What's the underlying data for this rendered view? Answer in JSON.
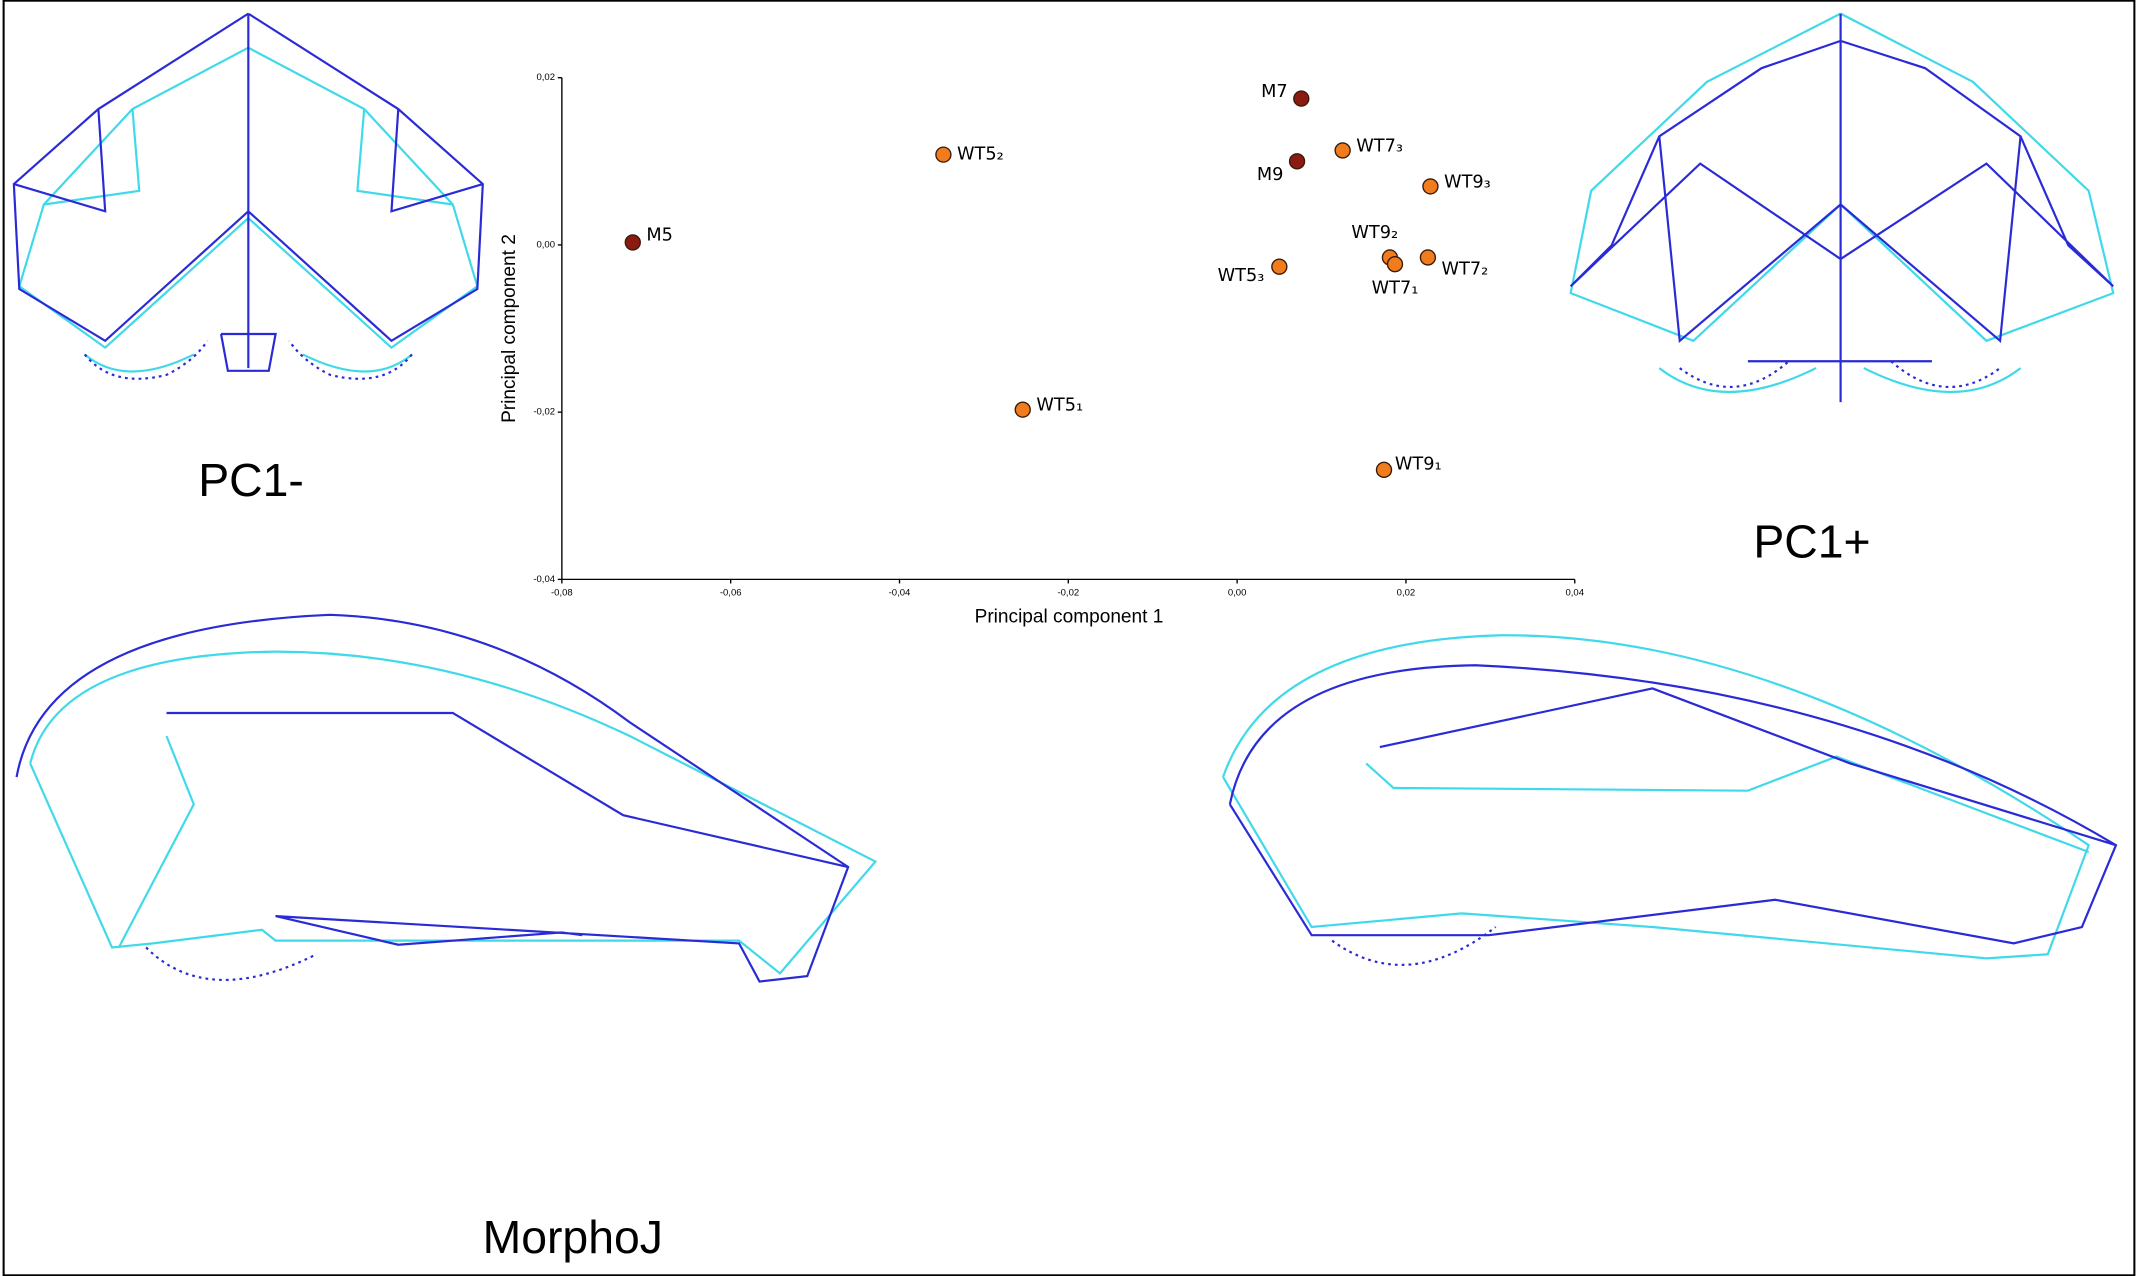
{
  "chart_data": {
    "type": "scatter",
    "x_label": "Principal component 1",
    "y_label": "Principal component 2",
    "x": [
      -0.0716,
      -0.0348,
      -0.0254,
      0.0076,
      0.0071,
      0.0125,
      0.0229,
      0.0181,
      0.0187,
      0.0226,
      0.005,
      0.0174
    ],
    "values": [
      0.0003,
      0.0108,
      -0.0197,
      0.0175,
      0.01,
      0.0113,
      0.007,
      -0.0015,
      -0.0023,
      -0.0015,
      -0.0026,
      -0.0269
    ],
    "point_labels": [
      "M5",
      "WT5₂",
      "WT5₁",
      "M7",
      "M9",
      "WT7₃",
      "WT9₃",
      "WT9₂",
      "WT7₁",
      "WT7₂",
      "WT5₃",
      "WT9₁"
    ],
    "colors": [
      "#8b1a10",
      "#f07c1e",
      "#f07c1e",
      "#8b1a10",
      "#8b1a10",
      "#f07c1e",
      "#f07c1e",
      "#f07c1e",
      "#f07c1e",
      "#f07c1e",
      "#f07c1e",
      "#f07c1e"
    ],
    "xlim": [
      -0.08,
      0.04
    ],
    "ylim": [
      -0.04,
      0.02
    ],
    "xticks": [
      {
        "value": -0.08,
        "label": "-0,08"
      },
      {
        "value": -0.06,
        "label": "-0,06"
      },
      {
        "value": -0.04,
        "label": "-0,04"
      },
      {
        "value": -0.02,
        "label": "-0,02"
      },
      {
        "value": 0,
        "label": "0,00"
      },
      {
        "value": 0.02,
        "label": "0,02"
      },
      {
        "value": 0.04,
        "label": "0,04"
      }
    ],
    "yticks": [
      {
        "value": -0.04,
        "label": "-0,04"
      },
      {
        "value": -0.02,
        "label": "-0,02"
      },
      {
        "value": 0,
        "label": "0,00"
      },
      {
        "value": 0.02,
        "label": "0,02"
      }
    ],
    "annotations": [
      "PC1-",
      "PC1+",
      "MorphoJ"
    ]
  }
}
